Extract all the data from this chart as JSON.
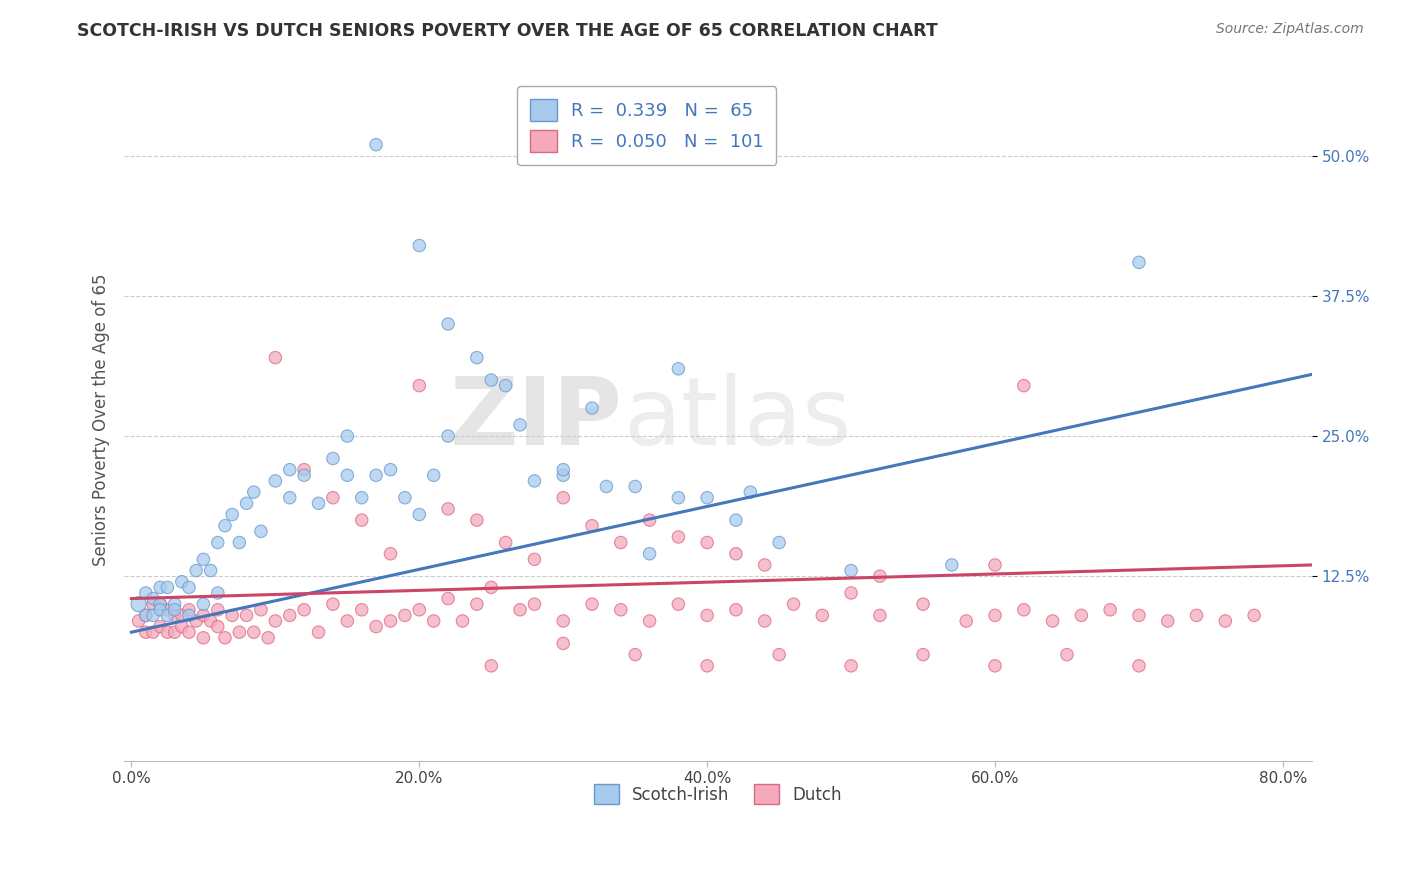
{
  "title": "SCOTCH-IRISH VS DUTCH SENIORS POVERTY OVER THE AGE OF 65 CORRELATION CHART",
  "source": "Source: ZipAtlas.com",
  "ylabel": "Seniors Poverty Over the Age of 65",
  "xlabel_ticks": [
    "0.0%",
    "20.0%",
    "40.0%",
    "60.0%",
    "80.0%"
  ],
  "xlabel_vals": [
    0.0,
    0.2,
    0.4,
    0.6,
    0.8
  ],
  "ylabel_ticks": [
    "12.5%",
    "25.0%",
    "37.5%",
    "50.0%"
  ],
  "ylabel_vals": [
    0.125,
    0.25,
    0.375,
    0.5
  ],
  "xlim": [
    -0.005,
    0.82
  ],
  "ylim": [
    -0.04,
    0.57
  ],
  "scotch_irish_R": 0.339,
  "scotch_irish_N": 65,
  "dutch_R": 0.05,
  "dutch_N": 101,
  "scotch_irish_color": "#A8CAEE",
  "dutch_color": "#F4AABB",
  "scotch_irish_edge_color": "#6699CC",
  "dutch_edge_color": "#DD6688",
  "scotch_irish_line_color": "#4477BB",
  "dutch_line_color": "#CC4466",
  "legend_label_scotch": "Scotch-Irish",
  "legend_label_dutch": "Dutch",
  "watermark_zip": "ZIP",
  "watermark_atlas": "atlas",
  "background_color": "#ffffff",
  "grid_color": "#cccccc",
  "si_line_x0": 0.0,
  "si_line_x1": 0.82,
  "si_line_y0": 0.075,
  "si_line_y1": 0.305,
  "du_line_x0": 0.0,
  "du_line_x1": 0.82,
  "du_line_y0": 0.105,
  "du_line_y1": 0.135,
  "scotch_irish_x": [
    0.005,
    0.01,
    0.01,
    0.015,
    0.015,
    0.02,
    0.02,
    0.02,
    0.025,
    0.025,
    0.03,
    0.03,
    0.035,
    0.04,
    0.04,
    0.045,
    0.05,
    0.05,
    0.055,
    0.06,
    0.06,
    0.065,
    0.07,
    0.075,
    0.08,
    0.085,
    0.09,
    0.1,
    0.11,
    0.11,
    0.12,
    0.13,
    0.14,
    0.15,
    0.15,
    0.16,
    0.17,
    0.18,
    0.19,
    0.2,
    0.21,
    0.22,
    0.25,
    0.27,
    0.3,
    0.32,
    0.35,
    0.38,
    0.4,
    0.43,
    0.17,
    0.2,
    0.22,
    0.24,
    0.26,
    0.28,
    0.3,
    0.33,
    0.36,
    0.38,
    0.42,
    0.45,
    0.5,
    0.57,
    0.7
  ],
  "scotch_irish_y": [
    0.1,
    0.09,
    0.11,
    0.09,
    0.105,
    0.1,
    0.115,
    0.095,
    0.09,
    0.115,
    0.1,
    0.095,
    0.12,
    0.115,
    0.09,
    0.13,
    0.14,
    0.1,
    0.13,
    0.155,
    0.11,
    0.17,
    0.18,
    0.155,
    0.19,
    0.2,
    0.165,
    0.21,
    0.22,
    0.195,
    0.215,
    0.19,
    0.23,
    0.25,
    0.215,
    0.195,
    0.215,
    0.22,
    0.195,
    0.18,
    0.215,
    0.25,
    0.3,
    0.26,
    0.215,
    0.275,
    0.205,
    0.31,
    0.195,
    0.2,
    0.51,
    0.42,
    0.35,
    0.32,
    0.295,
    0.21,
    0.22,
    0.205,
    0.145,
    0.195,
    0.175,
    0.155,
    0.13,
    0.135,
    0.405
  ],
  "scotch_irish_size": [
    120,
    80,
    80,
    80,
    80,
    80,
    80,
    80,
    80,
    80,
    80,
    80,
    80,
    80,
    80,
    80,
    80,
    80,
    80,
    80,
    80,
    80,
    80,
    80,
    80,
    80,
    80,
    80,
    80,
    80,
    80,
    80,
    80,
    80,
    80,
    80,
    80,
    80,
    80,
    80,
    80,
    80,
    80,
    80,
    80,
    80,
    80,
    80,
    80,
    80,
    80,
    80,
    80,
    80,
    80,
    80,
    80,
    80,
    80,
    80,
    80,
    80,
    80,
    80,
    80
  ],
  "dutch_x": [
    0.005,
    0.01,
    0.01,
    0.015,
    0.015,
    0.02,
    0.02,
    0.025,
    0.025,
    0.03,
    0.03,
    0.035,
    0.035,
    0.04,
    0.04,
    0.045,
    0.05,
    0.05,
    0.055,
    0.06,
    0.06,
    0.065,
    0.07,
    0.075,
    0.08,
    0.085,
    0.09,
    0.095,
    0.1,
    0.11,
    0.12,
    0.13,
    0.14,
    0.15,
    0.16,
    0.17,
    0.18,
    0.19,
    0.2,
    0.21,
    0.22,
    0.23,
    0.24,
    0.25,
    0.27,
    0.28,
    0.3,
    0.32,
    0.34,
    0.36,
    0.38,
    0.4,
    0.42,
    0.44,
    0.46,
    0.48,
    0.5,
    0.52,
    0.55,
    0.58,
    0.6,
    0.62,
    0.64,
    0.66,
    0.68,
    0.7,
    0.72,
    0.74,
    0.76,
    0.78,
    0.1,
    0.12,
    0.14,
    0.16,
    0.18,
    0.2,
    0.22,
    0.24,
    0.26,
    0.28,
    0.3,
    0.32,
    0.34,
    0.36,
    0.38,
    0.4,
    0.42,
    0.44,
    0.52,
    0.6,
    0.25,
    0.3,
    0.35,
    0.4,
    0.45,
    0.5,
    0.55,
    0.6,
    0.65,
    0.7,
    0.62
  ],
  "dutch_y": [
    0.085,
    0.075,
    0.09,
    0.075,
    0.1,
    0.08,
    0.1,
    0.075,
    0.095,
    0.075,
    0.09,
    0.08,
    0.09,
    0.075,
    0.095,
    0.085,
    0.09,
    0.07,
    0.085,
    0.08,
    0.095,
    0.07,
    0.09,
    0.075,
    0.09,
    0.075,
    0.095,
    0.07,
    0.085,
    0.09,
    0.095,
    0.075,
    0.1,
    0.085,
    0.095,
    0.08,
    0.085,
    0.09,
    0.095,
    0.085,
    0.105,
    0.085,
    0.1,
    0.115,
    0.095,
    0.1,
    0.085,
    0.1,
    0.095,
    0.085,
    0.1,
    0.09,
    0.095,
    0.085,
    0.1,
    0.09,
    0.11,
    0.09,
    0.1,
    0.085,
    0.09,
    0.095,
    0.085,
    0.09,
    0.095,
    0.09,
    0.085,
    0.09,
    0.085,
    0.09,
    0.32,
    0.22,
    0.195,
    0.175,
    0.145,
    0.295,
    0.185,
    0.175,
    0.155,
    0.14,
    0.195,
    0.17,
    0.155,
    0.175,
    0.16,
    0.155,
    0.145,
    0.135,
    0.125,
    0.135,
    0.045,
    0.065,
    0.055,
    0.045,
    0.055,
    0.045,
    0.055,
    0.045,
    0.055,
    0.045,
    0.295
  ],
  "dutch_size": [
    80,
    80,
    80,
    80,
    80,
    80,
    80,
    80,
    80,
    80,
    80,
    80,
    80,
    80,
    80,
    80,
    80,
    80,
    80,
    80,
    80,
    80,
    80,
    80,
    80,
    80,
    80,
    80,
    80,
    80,
    80,
    80,
    80,
    80,
    80,
    80,
    80,
    80,
    80,
    80,
    80,
    80,
    80,
    80,
    80,
    80,
    80,
    80,
    80,
    80,
    80,
    80,
    80,
    80,
    80,
    80,
    80,
    80,
    80,
    80,
    80,
    80,
    80,
    80,
    80,
    80,
    80,
    80,
    80,
    80,
    80,
    80,
    80,
    80,
    80,
    80,
    80,
    80,
    80,
    80,
    80,
    80,
    80,
    80,
    80,
    80,
    80,
    80,
    80,
    80,
    80,
    80,
    80,
    80,
    80,
    80,
    80,
    80,
    80,
    80,
    80
  ]
}
